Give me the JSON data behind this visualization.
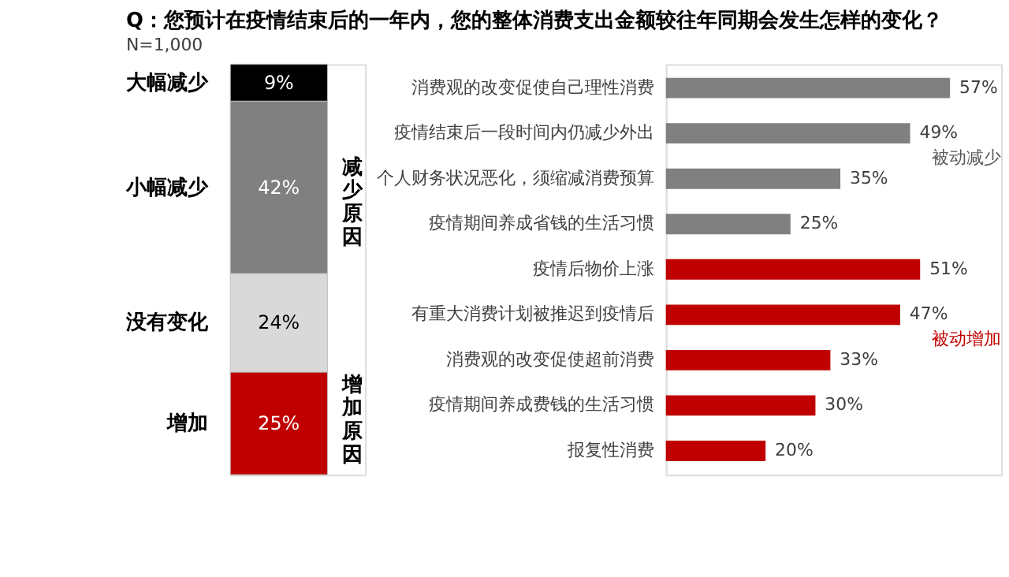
{
  "chart_data": [
    {
      "type": "bar",
      "stacked": true,
      "title": "Q：您预计在疫情结束后的一年内，您的整体消费支出金额较往年同期会发生怎样的变化？",
      "subtitle": "N=1,000",
      "categories": [
        null
      ],
      "series": [
        {
          "name": "增加",
          "color": "#c00000",
          "values": [
            25
          ],
          "value_labels": [
            "25%"
          ]
        },
        {
          "name": "没有变化",
          "color": "#d9d9d9",
          "values": [
            24
          ],
          "value_labels": [
            "24%"
          ]
        },
        {
          "name": "小幅减少",
          "color": "#808080",
          "values": [
            42
          ],
          "value_labels": [
            "42%"
          ]
        },
        {
          "name": "大幅减少",
          "color": "#000000",
          "values": [
            9
          ],
          "value_labels": [
            "9%"
          ]
        }
      ],
      "annotations": [
        "减少原因",
        "增加原因"
      ]
    },
    {
      "type": "bar",
      "orientation": "horizontal",
      "categories": [
        "消费观的改变促使自己理性消费",
        "疫情结束后一段时间内仍减少外出",
        "个人财务状况恶化，须缩减消费预算",
        "疫情期间养成省钱的生活习惯",
        "疫情后物价上涨",
        "有重大消费计划被推迟到疫情后",
        "消费观的改变促使超前消费",
        "疫情期间养成费钱的生活习惯",
        "报复性消费"
      ],
      "values": [
        57,
        49,
        35,
        25,
        51,
        47,
        33,
        30,
        20
      ],
      "colors": [
        "#808080",
        "#808080",
        "#808080",
        "#808080",
        "#c00000",
        "#c00000",
        "#c00000",
        "#c00000",
        "#c00000"
      ],
      "value_labels": [
        "57%",
        "49%",
        "35%",
        "25%",
        "51%",
        "47%",
        "33%",
        "30%",
        "20%"
      ],
      "annotations": [
        "被动减少",
        "被动增加"
      ]
    }
  ]
}
